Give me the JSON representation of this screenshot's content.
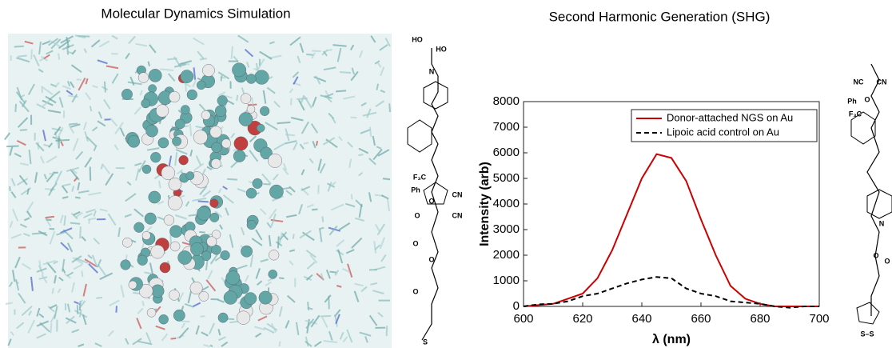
{
  "panel_titles": [
    "Molecular Dynamics Simulation",
    "Second Harmonic Generation (SHG)"
  ],
  "structure_left": [
    "HO",
    "HO",
    "N",
    "F₃C",
    "Ph",
    "O",
    "CN",
    "O",
    "CN",
    "O",
    "O",
    "O",
    "S"
  ],
  "structure_right": [
    "NC",
    "CN",
    "O",
    "Ph",
    "F₃C",
    "N",
    "O",
    "O",
    "S–S"
  ],
  "chart_data": {
    "type": "line",
    "x": [
      600,
      605,
      610,
      615,
      620,
      625,
      630,
      635,
      640,
      645,
      650,
      655,
      660,
      665,
      670,
      675,
      680,
      685,
      690,
      695,
      700
    ],
    "series": [
      {
        "name": "Donor-attached NGS on Au",
        "color": "#cc0000",
        "dash": false,
        "values": [
          0,
          50,
          100,
          300,
          500,
          1100,
          2200,
          3600,
          5000,
          5950,
          5800,
          4900,
          3400,
          2000,
          800,
          300,
          100,
          0,
          0,
          0,
          0
        ]
      },
      {
        "name": "Lipoic acid control on Au",
        "color": "#000000",
        "dash": true,
        "values": [
          0,
          80,
          100,
          200,
          400,
          500,
          700,
          900,
          1050,
          1150,
          1100,
          700,
          500,
          400,
          200,
          150,
          100,
          0,
          -50,
          0,
          0
        ]
      }
    ],
    "xlabel": "λ (nm)",
    "ylabel": "Intensity (arb)",
    "xlim": [
      600,
      700
    ],
    "xticks": [
      600,
      620,
      640,
      660,
      680,
      700
    ],
    "ylim": [
      0,
      8000
    ],
    "yticks": [
      0,
      1000,
      2000,
      3000,
      4000,
      5000,
      6000,
      7000,
      8000
    ],
    "legend": "upper right"
  }
}
